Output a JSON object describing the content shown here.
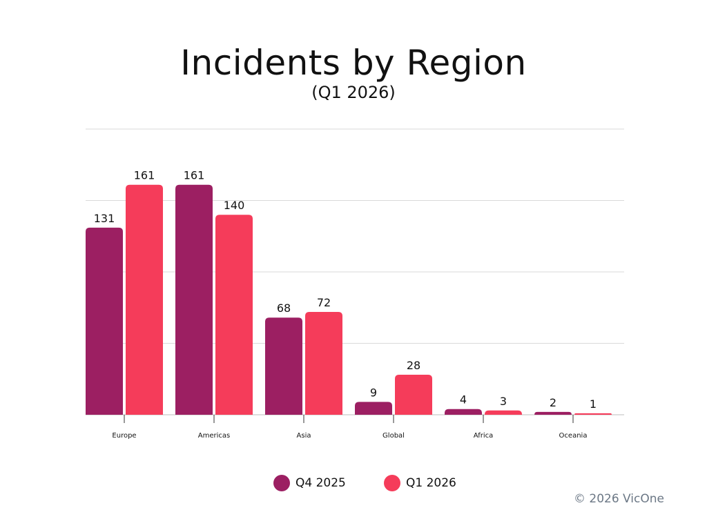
{
  "chart_data": {
    "type": "bar",
    "title": "Incidents by Region",
    "subtitle": "(Q1 2026)",
    "categories": [
      "Europe",
      "Americas",
      "Asia",
      "Global",
      "Africa",
      "Oceania"
    ],
    "series": [
      {
        "name": "Q4 2025",
        "color": "#9c1f62",
        "values": [
          131,
          161,
          68,
          9,
          4,
          2
        ]
      },
      {
        "name": "Q1 2026",
        "color": "#f53c5a",
        "values": [
          161,
          140,
          72,
          28,
          3,
          1
        ]
      }
    ],
    "ylim": [
      0,
      200
    ],
    "grid": true,
    "legend_position": "bottom-center"
  },
  "footer": {
    "copyright": "© 2026 VicOne"
  }
}
